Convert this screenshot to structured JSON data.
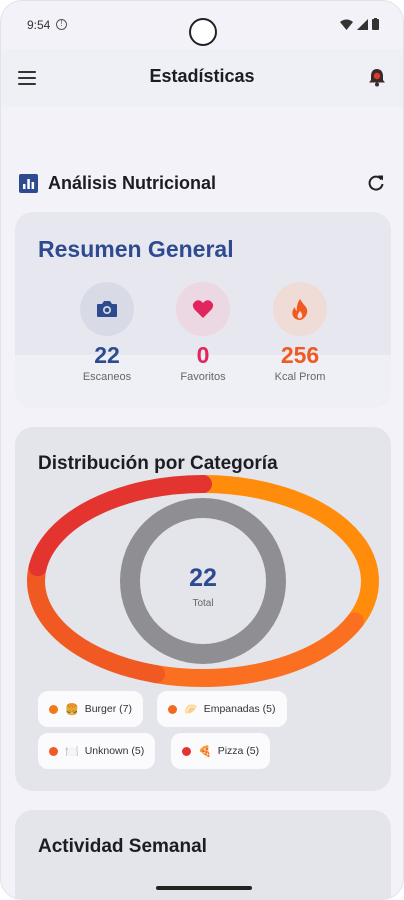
{
  "status": {
    "time": "9:54",
    "dnd_icon": "do-not-disturb-icon"
  },
  "appbar": {
    "title": "Estadísticas"
  },
  "section": {
    "title": "Análisis Nutricional"
  },
  "summary": {
    "title": "Resumen General",
    "stats": [
      {
        "value": "22",
        "label": "Escaneos",
        "icon": "camera-icon",
        "color": "#2f4b8f",
        "bg": "#d8dbe6"
      },
      {
        "value": "0",
        "label": "Favoritos",
        "icon": "heart-icon",
        "color": "#e2255e",
        "bg": "#ecd8e2"
      },
      {
        "value": "256",
        "label": "Kcal Prom",
        "icon": "fire-icon",
        "color": "#f05a22",
        "bg": "#efdcd6"
      }
    ]
  },
  "distribution": {
    "title": "Distribución por Categoría",
    "center_value": "22",
    "center_label": "Total",
    "chips": [
      {
        "label": "Burger (7)",
        "emoji": "🍔",
        "color": "#f07a1a"
      },
      {
        "label": "Empanadas (5)",
        "emoji": "🥟",
        "color": "#f26a22"
      },
      {
        "label": "Unknown (5)",
        "emoji": "🍽️",
        "color": "#f05a22"
      },
      {
        "label": "Pizza (5)",
        "emoji": "🍕",
        "color": "#e3342f"
      }
    ]
  },
  "chart_data": {
    "type": "pie",
    "categories": [
      "Burger",
      "Empanadas",
      "Unknown",
      "Pizza"
    ],
    "values": [
      7,
      5,
      5,
      5
    ],
    "colors": [
      "#ff8c0a",
      "#fa7020",
      "#f05a22",
      "#e3342f"
    ],
    "center_label": "Total"
  },
  "weekly": {
    "title": "Actividad Semanal"
  }
}
